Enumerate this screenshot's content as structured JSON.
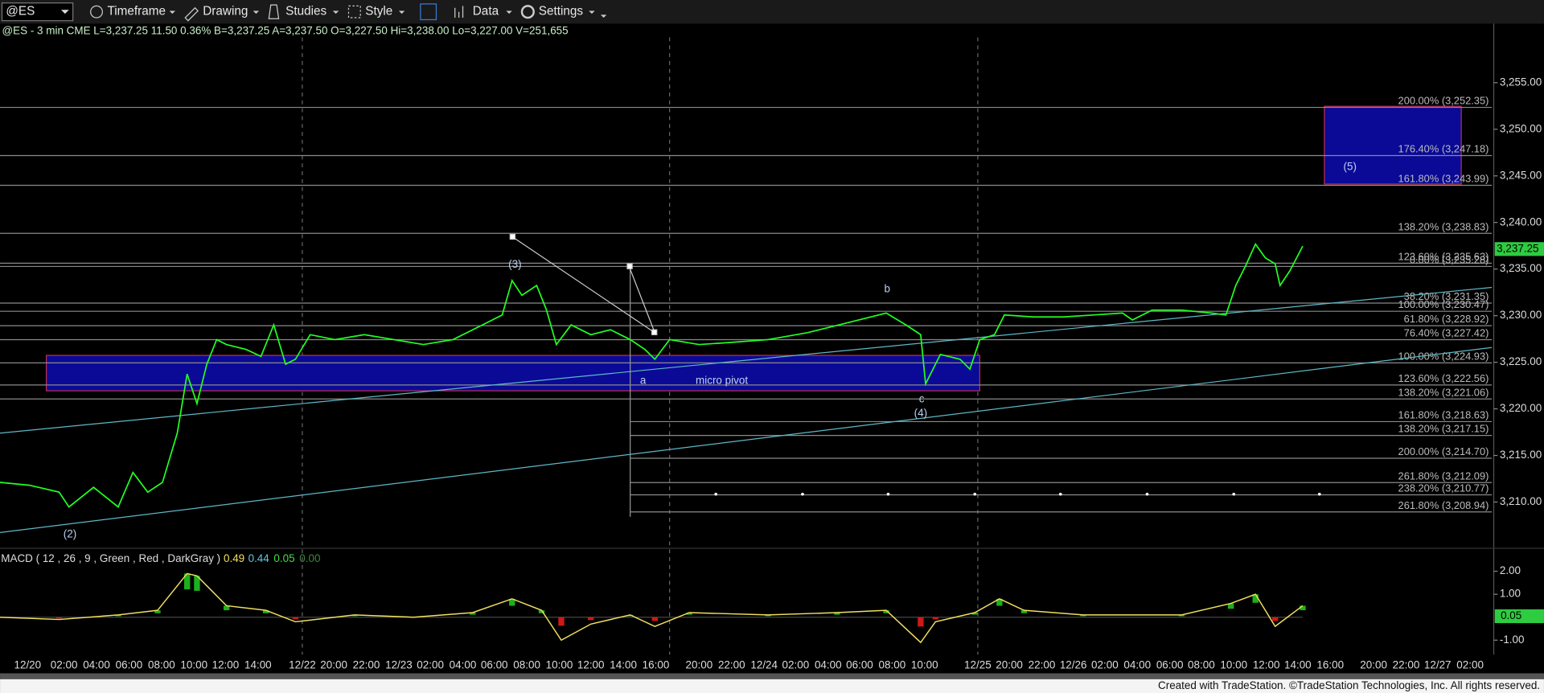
{
  "toolbar": {
    "symbol": "@ES",
    "items": [
      "Timeframe",
      "Drawing",
      "Studies",
      "Style",
      "Data",
      "Settings"
    ]
  },
  "info": "@ES - 3 min  CME  L=3,237.25  11.50  0.36%  B=3,237.25  A=3,237.50  O=3,227.50  Hi=3,238.00  Lo=3,227.00  V=251,655",
  "price_axis": {
    "ticks": [
      {
        "value": 3255,
        "label": "3,255.00"
      },
      {
        "value": 3250,
        "label": "3,250.00"
      },
      {
        "value": 3245,
        "label": "3,245.00"
      },
      {
        "value": 3240,
        "label": "3,240.00"
      },
      {
        "value": 3235,
        "label": "3,235.00"
      },
      {
        "value": 3230,
        "label": "3,230.00"
      },
      {
        "value": 3225,
        "label": "3,225.00"
      },
      {
        "value": 3220,
        "label": "3,220.00"
      },
      {
        "value": 3215,
        "label": "3,215.00"
      },
      {
        "value": 3210,
        "label": "3,210.00"
      }
    ]
  },
  "price_tag": "3,237.25",
  "fib_levels": [
    {
      "value": 3252.35,
      "label": "200.00% (3,252.35)"
    },
    {
      "value": 3247.18,
      "label": "176.40% (3,247.18)"
    },
    {
      "value": 3243.99,
      "label": "161.80% (3,243.99)"
    },
    {
      "value": 3238.83,
      "label": "138.20% (3,238.83)"
    },
    {
      "value": 3235.63,
      "label": "123.60% (3,235.63)"
    },
    {
      "value": 3235.28,
      "label": "0.00% (3,235.28)"
    },
    {
      "value": 3231.35,
      "label": "38.20% (3,231.35)"
    },
    {
      "value": 3230.47,
      "label": "100.00% (3,230.47)"
    },
    {
      "value": 3228.92,
      "label": "61.80% (3,228.92)"
    },
    {
      "value": 3227.42,
      "label": "76.40% (3,227.42)"
    },
    {
      "value": 3224.93,
      "label": "100.00% (3,224.93)"
    },
    {
      "value": 3222.56,
      "label": "123.60% (3,222.56)"
    },
    {
      "value": 3221.06,
      "label": "138.20% (3,221.06)"
    },
    {
      "value": 3218.63,
      "label": "161.80% (3,218.63)"
    },
    {
      "value": 3217.15,
      "label": "138.20% (3,217.15)"
    },
    {
      "value": 3214.7,
      "label": "200.00% (3,214.70)"
    },
    {
      "value": 3212.09,
      "label": "261.80% (3,212.09)"
    },
    {
      "value": 3210.77,
      "label": "238.20% (3,210.77)"
    },
    {
      "value": 3208.94,
      "label": "261.80% (3,208.94)"
    }
  ],
  "annotations": [
    "(2)",
    "(3)",
    "a",
    "micro pivot",
    "b",
    "c",
    "(4)",
    "(5)"
  ],
  "price": {
    "values": [
      3212.11,
      3211.8,
      3211.06,
      3209.47,
      3211.58,
      3209.47,
      3213.17,
      3211.06,
      3212.11,
      3217.39,
      3223.73,
      3220.56,
      3224.79,
      3227.43,
      3226.9,
      3226.37,
      3225.63,
      3229.01,
      3224.79,
      3225.32,
      3227.96,
      3227.43,
      3227.96,
      3227.43,
      3226.9,
      3227.43,
      3229.01,
      3230.07,
      3233.77,
      3232.18,
      3233.24,
      3230.6,
      3226.9,
      3229.01,
      3227.96,
      3228.49,
      3227.43,
      3226.37,
      3225.32,
      3227.43,
      3226.9,
      3227.11,
      3227.43,
      3228.17,
      3229.22,
      3230.28,
      3229.01,
      3227.96,
      3222.68,
      3225.84,
      3225.32,
      3224.26,
      3227.43,
      3227.96,
      3230.07,
      3229.86,
      3229.86,
      3230.07,
      3230.28,
      3229.54,
      3230.6,
      3230.6,
      3230.28,
      3230.07,
      3233.24,
      3235.35,
      3237.68,
      3236.2,
      3235.56,
      3233.24,
      3234.82,
      3237.46
    ]
  },
  "macd": {
    "title": "MACD ( 12 , 26 , 9 , Green , Red , DarkGray )",
    "readings": [
      "0.49",
      "0.44",
      "0.05",
      "0.00"
    ],
    "tag": "0.05",
    "ticks": [
      {
        "value": 2,
        "label": "2.00"
      },
      {
        "value": 1,
        "label": "1.00"
      },
      {
        "value": -1,
        "label": "-1.00"
      }
    ],
    "values": [
      0,
      -0.1,
      0.1,
      0.3,
      1.9,
      1.8,
      0.5,
      0.3,
      -0.2,
      0.1,
      0,
      0.2,
      0.8,
      0.3,
      -1,
      -0.3,
      0.1,
      -0.4,
      0.2,
      0.1,
      0.2,
      0.3,
      -1.1,
      -0.2,
      0.2,
      0.8,
      0.3,
      0.1,
      0.1,
      0.6,
      1,
      -0.4,
      0.5
    ]
  },
  "time_axis": {
    "labels": [
      "12/20",
      "02:00",
      "04:00",
      "06:00",
      "08:00",
      "10:00",
      "12:00",
      "14:00",
      "12/22",
      "20:00",
      "22:00",
      "12/23",
      "02:00",
      "04:00",
      "06:00",
      "08:00",
      "10:00",
      "12:00",
      "14:00",
      "16:00",
      "20:00",
      "22:00",
      "12/24",
      "02:00",
      "04:00",
      "06:00",
      "08:00",
      "10:00",
      "12/25",
      "20:00",
      "22:00",
      "12/26",
      "02:00",
      "04:00",
      "06:00",
      "08:00",
      "10:00",
      "12:00",
      "14:00",
      "16:00",
      "20:00",
      "22:00",
      "12/27",
      "02:00"
    ]
  },
  "footer": "Created with TradeStation. ©TradeStation Technologies, Inc. All rights reserved."
}
